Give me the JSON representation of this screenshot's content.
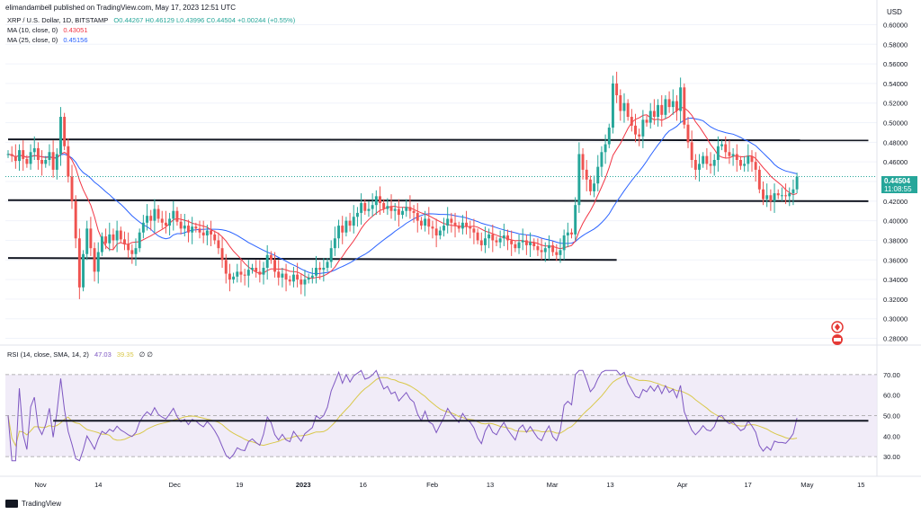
{
  "header": {
    "published": "elimandambell published on TradingView.com, May 17, 2023 12:51 UTC"
  },
  "legend": {
    "symbol": "XRP / U.S. Dollar, 1D, BITSTAMP",
    "ohlc": "O0.44267 H0.46129 L0.43996 C0.44504 +0.00244 (+0.55%)",
    "ma10_label": "MA (10, close, 0)",
    "ma10_value": "0.43051",
    "ma25_label": "MA (25, close, 0)",
    "ma25_value": "0.45156",
    "rsi_label": "RSI (14, close, SMA, 14, 2)",
    "rsi_value": "47.03",
    "rsi_ma_value": "39.35",
    "rsi_extra": "∅ ∅"
  },
  "currency": "USD",
  "price_badge": {
    "price": "0.44504",
    "countdown": "11:08:55"
  },
  "footer": {
    "brand": "TradingView"
  },
  "colors": {
    "up": "#26a69a",
    "down": "#ef5350",
    "ma10": "#f23645",
    "ma25": "#2962ff",
    "rsi": "#7e57c2",
    "rsi_ma": "#d9c84a"
  },
  "chart_data": {
    "type": "candlestick",
    "price_axis": {
      "ticks": [
        "0.60000",
        "0.58000",
        "0.56000",
        "0.54000",
        "0.52000",
        "0.50000",
        "0.48000",
        "0.46000",
        "0.44000",
        "0.42000",
        "0.40000",
        "0.38000",
        "0.36000",
        "0.34000",
        "0.32000",
        "0.30000",
        "0.28000"
      ],
      "range": [
        0.275,
        0.605
      ]
    },
    "time_axis": {
      "labels": [
        "Nov",
        "14",
        "Dec",
        "19",
        "2023",
        "16",
        "Feb",
        "13",
        "Mar",
        "13",
        "Apr",
        "17",
        "May",
        "15"
      ]
    },
    "rsi_axis": {
      "ticks": [
        "70.00",
        "60.00",
        "50.00",
        "40.00",
        "30.00"
      ],
      "range": [
        27,
        73
      ],
      "band": [
        30,
        70
      ]
    },
    "support_resistance_lines": [
      {
        "from_day": 0,
        "to_day": 229,
        "from": 0.483,
        "to": 0.482
      },
      {
        "from_day": 0,
        "to_day": 229,
        "from": 0.421,
        "to": 0.42
      },
      {
        "from_day": 0,
        "to_day": 162,
        "from": 0.362,
        "to": 0.36
      }
    ],
    "rsi_line": {
      "from_day": 12,
      "to_day": 229,
      "value": 47.5
    },
    "candles_close": [
      0.468,
      0.466,
      0.461,
      0.472,
      0.463,
      0.458,
      0.47,
      0.474,
      0.462,
      0.458,
      0.462,
      0.47,
      0.452,
      0.468,
      0.506,
      0.476,
      0.445,
      0.42,
      0.382,
      0.332,
      0.366,
      0.392,
      0.372,
      0.348,
      0.368,
      0.384,
      0.377,
      0.386,
      0.38,
      0.39,
      0.381,
      0.376,
      0.37,
      0.366,
      0.372,
      0.388,
      0.398,
      0.405,
      0.4,
      0.412,
      0.402,
      0.398,
      0.395,
      0.402,
      0.41,
      0.399,
      0.392,
      0.395,
      0.388,
      0.394,
      0.392,
      0.388,
      0.385,
      0.39,
      0.386,
      0.38,
      0.372,
      0.36,
      0.346,
      0.34,
      0.343,
      0.348,
      0.345,
      0.344,
      0.35,
      0.352,
      0.348,
      0.345,
      0.352,
      0.365,
      0.36,
      0.348,
      0.342,
      0.346,
      0.34,
      0.338,
      0.345,
      0.34,
      0.335,
      0.34,
      0.342,
      0.344,
      0.352,
      0.35,
      0.352,
      0.358,
      0.372,
      0.382,
      0.395,
      0.388,
      0.4,
      0.395,
      0.404,
      0.408,
      0.418,
      0.41,
      0.412,
      0.416,
      0.425,
      0.418,
      0.412,
      0.415,
      0.41,
      0.412,
      0.406,
      0.41,
      0.414,
      0.41,
      0.408,
      0.4,
      0.395,
      0.402,
      0.394,
      0.392,
      0.385,
      0.39,
      0.395,
      0.402,
      0.398,
      0.395,
      0.392,
      0.398,
      0.394,
      0.392,
      0.388,
      0.38,
      0.375,
      0.382,
      0.386,
      0.38,
      0.378,
      0.382,
      0.385,
      0.38,
      0.376,
      0.372,
      0.378,
      0.38,
      0.375,
      0.378,
      0.374,
      0.37,
      0.368,
      0.372,
      0.375,
      0.368,
      0.365,
      0.37,
      0.385,
      0.388,
      0.386,
      0.416,
      0.468,
      0.452,
      0.442,
      0.43,
      0.438,
      0.455,
      0.47,
      0.478,
      0.495,
      0.54,
      0.528,
      0.512,
      0.52,
      0.506,
      0.497,
      0.488,
      0.486,
      0.503,
      0.5,
      0.512,
      0.506,
      0.518,
      0.508,
      0.524,
      0.516,
      0.522,
      0.512,
      0.536,
      0.498,
      0.48,
      0.462,
      0.452,
      0.458,
      0.466,
      0.458,
      0.456,
      0.462,
      0.476,
      0.478,
      0.47,
      0.466,
      0.468,
      0.462,
      0.456,
      0.458,
      0.466,
      0.46,
      0.452,
      0.432,
      0.422,
      0.426,
      0.42,
      0.428,
      0.426,
      0.426,
      0.425,
      0.428,
      0.432,
      0.445
    ],
    "ma10_approx": "red line tracking short-term average, ends 0.43051",
    "ma25_approx": "blue line tracking longer average, ends 0.45156",
    "last_close": 0.44504,
    "rsi_last": 47.03,
    "rsi_ma_last": 39.35
  }
}
